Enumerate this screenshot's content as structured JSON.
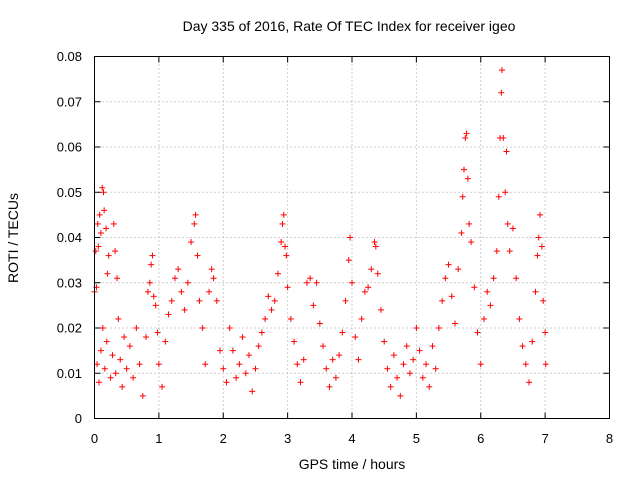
{
  "chart_data": {
    "type": "scatter",
    "title": "Day 335 of 2016, Rate Of TEC Index for receiver igeo",
    "xlabel": "GPS time / hours",
    "ylabel": "ROTI / TECUs",
    "xlim": [
      0,
      8
    ],
    "ylim": [
      0,
      0.08
    ],
    "xticks": [
      0,
      1,
      2,
      3,
      4,
      5,
      6,
      7,
      8
    ],
    "yticks": [
      0,
      0.01,
      0.02,
      0.03,
      0.04,
      0.05,
      0.06,
      0.07,
      0.08
    ],
    "xtick_labels": [
      "0",
      "1",
      "2",
      "3",
      "4",
      "5",
      "6",
      "7",
      "8"
    ],
    "ytick_labels": [
      "0",
      "0.01",
      "0.02",
      "0.03",
      "0.04",
      "0.05",
      "0.06",
      "0.07",
      "0.08"
    ],
    "grid": true,
    "marker": "+",
    "color": "#ff0000",
    "series": [
      {
        "name": "ROTI",
        "points": [
          [
            0.0,
            0.028
          ],
          [
            0.02,
            0.037
          ],
          [
            0.03,
            0.029
          ],
          [
            0.05,
            0.043
          ],
          [
            0.06,
            0.038
          ],
          [
            0.08,
            0.045
          ],
          [
            0.1,
            0.041
          ],
          [
            0.12,
            0.051
          ],
          [
            0.14,
            0.05
          ],
          [
            0.15,
            0.046
          ],
          [
            0.18,
            0.042
          ],
          [
            0.2,
            0.032
          ],
          [
            0.22,
            0.036
          ],
          [
            0.3,
            0.043
          ],
          [
            0.32,
            0.037
          ],
          [
            0.35,
            0.031
          ],
          [
            0.04,
            0.012
          ],
          [
            0.07,
            0.008
          ],
          [
            0.1,
            0.015
          ],
          [
            0.13,
            0.02
          ],
          [
            0.16,
            0.011
          ],
          [
            0.19,
            0.017
          ],
          [
            0.25,
            0.009
          ],
          [
            0.28,
            0.014
          ],
          [
            0.33,
            0.01
          ],
          [
            0.37,
            0.022
          ],
          [
            0.4,
            0.013
          ],
          [
            0.43,
            0.007
          ],
          [
            0.46,
            0.018
          ],
          [
            0.5,
            0.011
          ],
          [
            0.55,
            0.016
          ],
          [
            0.6,
            0.009
          ],
          [
            0.65,
            0.02
          ],
          [
            0.7,
            0.012
          ],
          [
            0.75,
            0.005
          ],
          [
            0.8,
            0.018
          ],
          [
            0.83,
            0.028
          ],
          [
            0.86,
            0.03
          ],
          [
            0.88,
            0.034
          ],
          [
            0.9,
            0.036
          ],
          [
            0.92,
            0.027
          ],
          [
            0.95,
            0.025
          ],
          [
            0.98,
            0.019
          ],
          [
            1.0,
            0.012
          ],
          [
            1.05,
            0.007
          ],
          [
            1.1,
            0.017
          ],
          [
            1.15,
            0.023
          ],
          [
            1.2,
            0.026
          ],
          [
            1.25,
            0.031
          ],
          [
            1.3,
            0.033
          ],
          [
            1.35,
            0.028
          ],
          [
            1.4,
            0.024
          ],
          [
            1.45,
            0.03
          ],
          [
            1.5,
            0.039
          ],
          [
            1.55,
            0.043
          ],
          [
            1.57,
            0.045
          ],
          [
            1.6,
            0.036
          ],
          [
            1.63,
            0.026
          ],
          [
            1.68,
            0.02
          ],
          [
            1.72,
            0.012
          ],
          [
            1.78,
            0.028
          ],
          [
            1.82,
            0.033
          ],
          [
            1.85,
            0.031
          ],
          [
            1.9,
            0.026
          ],
          [
            1.95,
            0.015
          ],
          [
            2.0,
            0.011
          ],
          [
            2.05,
            0.008
          ],
          [
            2.1,
            0.02
          ],
          [
            2.15,
            0.015
          ],
          [
            2.2,
            0.009
          ],
          [
            2.25,
            0.012
          ],
          [
            2.3,
            0.018
          ],
          [
            2.35,
            0.01
          ],
          [
            2.4,
            0.014
          ],
          [
            2.45,
            0.006
          ],
          [
            2.5,
            0.011
          ],
          [
            2.55,
            0.016
          ],
          [
            2.6,
            0.019
          ],
          [
            2.65,
            0.022
          ],
          [
            2.7,
            0.027
          ],
          [
            2.75,
            0.024
          ],
          [
            2.8,
            0.026
          ],
          [
            2.85,
            0.032
          ],
          [
            2.9,
            0.039
          ],
          [
            2.92,
            0.043
          ],
          [
            2.94,
            0.045
          ],
          [
            2.96,
            0.038
          ],
          [
            2.98,
            0.036
          ],
          [
            3.0,
            0.029
          ],
          [
            3.05,
            0.022
          ],
          [
            3.1,
            0.017
          ],
          [
            3.15,
            0.012
          ],
          [
            3.2,
            0.008
          ],
          [
            3.25,
            0.013
          ],
          [
            3.3,
            0.03
          ],
          [
            3.35,
            0.031
          ],
          [
            3.4,
            0.025
          ],
          [
            3.45,
            0.03
          ],
          [
            3.5,
            0.021
          ],
          [
            3.55,
            0.016
          ],
          [
            3.6,
            0.011
          ],
          [
            3.65,
            0.007
          ],
          [
            3.7,
            0.013
          ],
          [
            3.75,
            0.009
          ],
          [
            3.8,
            0.014
          ],
          [
            3.85,
            0.019
          ],
          [
            3.9,
            0.026
          ],
          [
            3.95,
            0.035
          ],
          [
            3.97,
            0.04
          ],
          [
            4.0,
            0.03
          ],
          [
            4.05,
            0.018
          ],
          [
            4.1,
            0.013
          ],
          [
            4.15,
            0.022
          ],
          [
            4.2,
            0.028
          ],
          [
            4.25,
            0.029
          ],
          [
            4.3,
            0.033
          ],
          [
            4.35,
            0.039
          ],
          [
            4.37,
            0.038
          ],
          [
            4.4,
            0.032
          ],
          [
            4.45,
            0.024
          ],
          [
            4.5,
            0.017
          ],
          [
            4.55,
            0.011
          ],
          [
            4.6,
            0.007
          ],
          [
            4.65,
            0.014
          ],
          [
            4.7,
            0.009
          ],
          [
            4.75,
            0.005
          ],
          [
            4.8,
            0.012
          ],
          [
            4.85,
            0.016
          ],
          [
            4.9,
            0.01
          ],
          [
            4.95,
            0.013
          ],
          [
            5.0,
            0.02
          ],
          [
            5.05,
            0.015
          ],
          [
            5.1,
            0.009
          ],
          [
            5.15,
            0.012
          ],
          [
            5.2,
            0.007
          ],
          [
            5.25,
            0.016
          ],
          [
            5.3,
            0.011
          ],
          [
            5.35,
            0.02
          ],
          [
            5.4,
            0.026
          ],
          [
            5.45,
            0.031
          ],
          [
            5.5,
            0.034
          ],
          [
            5.55,
            0.027
          ],
          [
            5.6,
            0.021
          ],
          [
            5.65,
            0.033
          ],
          [
            5.7,
            0.041
          ],
          [
            5.72,
            0.049
          ],
          [
            5.74,
            0.055
          ],
          [
            5.76,
            0.062
          ],
          [
            5.78,
            0.063
          ],
          [
            5.8,
            0.053
          ],
          [
            5.82,
            0.043
          ],
          [
            5.85,
            0.039
          ],
          [
            5.9,
            0.029
          ],
          [
            5.95,
            0.019
          ],
          [
            6.0,
            0.012
          ],
          [
            6.05,
            0.022
          ],
          [
            6.1,
            0.028
          ],
          [
            6.15,
            0.025
          ],
          [
            6.2,
            0.031
          ],
          [
            6.25,
            0.037
          ],
          [
            6.28,
            0.049
          ],
          [
            6.3,
            0.062
          ],
          [
            6.32,
            0.072
          ],
          [
            6.33,
            0.077
          ],
          [
            6.35,
            0.062
          ],
          [
            6.38,
            0.05
          ],
          [
            6.4,
            0.059
          ],
          [
            6.42,
            0.043
          ],
          [
            6.45,
            0.037
          ],
          [
            6.5,
            0.042
          ],
          [
            6.55,
            0.031
          ],
          [
            6.6,
            0.022
          ],
          [
            6.65,
            0.016
          ],
          [
            6.7,
            0.012
          ],
          [
            6.75,
            0.008
          ],
          [
            6.8,
            0.017
          ],
          [
            6.85,
            0.028
          ],
          [
            6.88,
            0.036
          ],
          [
            6.9,
            0.04
          ],
          [
            6.92,
            0.045
          ],
          [
            6.95,
            0.038
          ],
          [
            6.97,
            0.026
          ],
          [
            7.0,
            0.019
          ],
          [
            7.01,
            0.012
          ]
        ]
      }
    ]
  }
}
